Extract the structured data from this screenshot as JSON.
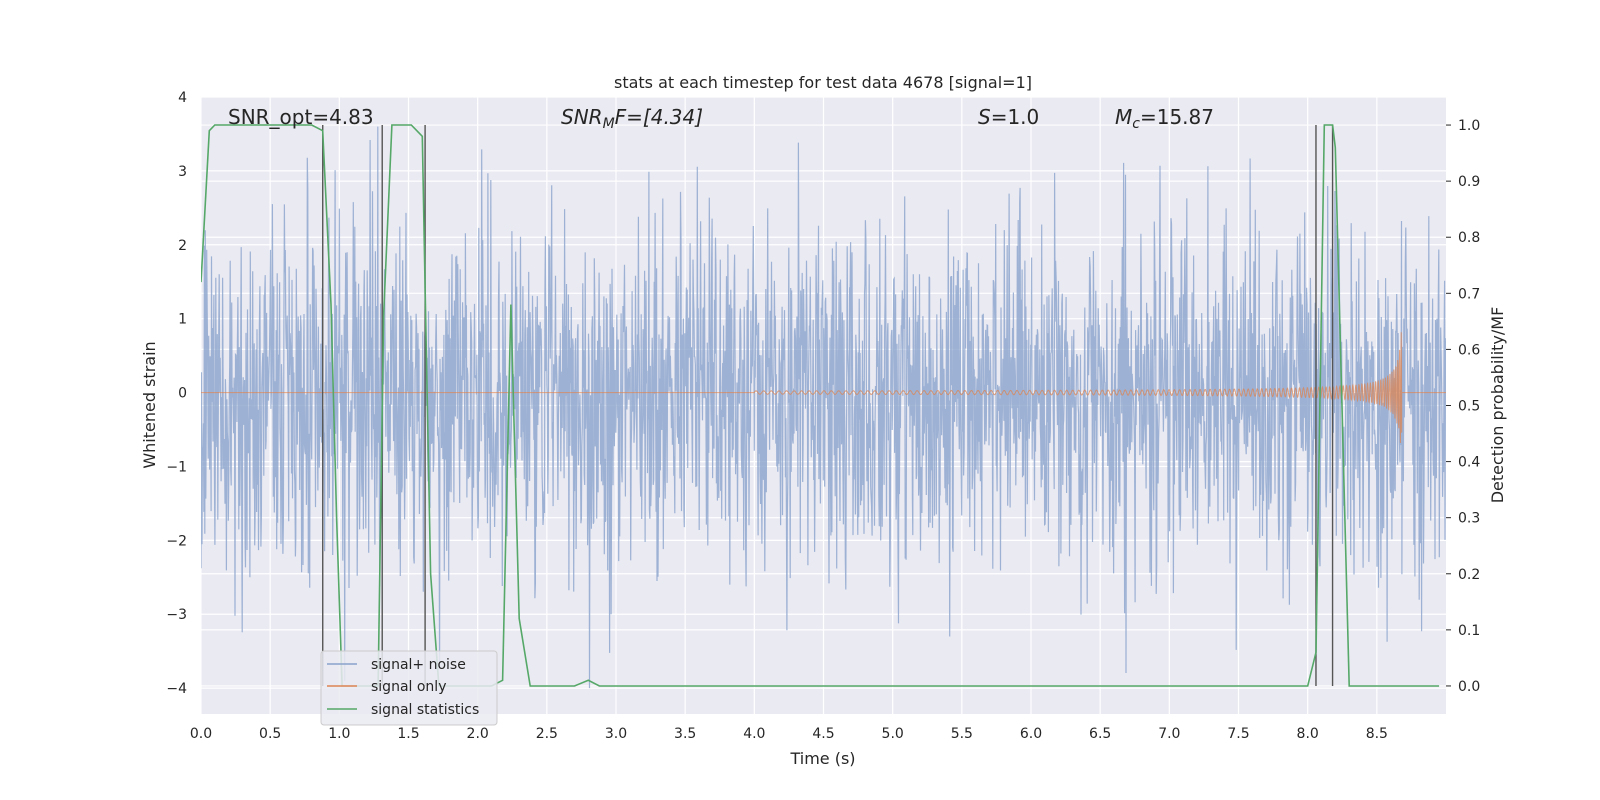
{
  "chart_data": {
    "type": "line",
    "title": "stats at each timestep for test data 4678 [signal=1]",
    "xlabel": "Time (s)",
    "ylabel": "Whitened strain",
    "y2label": "Detection probability/MF",
    "xlim": [
      0.0,
      9.0
    ],
    "ylim": [
      -4.35,
      4.0
    ],
    "y2lim": [
      -0.05,
      1.05
    ],
    "xticks": [
      0.0,
      0.5,
      1.0,
      1.5,
      2.0,
      2.5,
      3.0,
      3.5,
      4.0,
      4.5,
      5.0,
      5.5,
      6.0,
      6.5,
      7.0,
      7.5,
      8.0,
      8.5
    ],
    "xtick_labels": [
      "0.0",
      "0.5",
      "1.0",
      "1.5",
      "2.0",
      "2.5",
      "3.0",
      "3.5",
      "4.0",
      "4.5",
      "5.0",
      "5.5",
      "6.0",
      "6.5",
      "7.0",
      "7.5",
      "8.0",
      "8.5"
    ],
    "yticks": [
      -4,
      -3,
      -2,
      -1,
      0,
      1,
      2,
      3,
      4
    ],
    "ytick_labels": [
      "−4",
      "−3",
      "−2",
      "−1",
      "0",
      "1",
      "2",
      "3",
      "4"
    ],
    "y2ticks": [
      0.0,
      0.1,
      0.2,
      0.3,
      0.4,
      0.5,
      0.6,
      0.7,
      0.8,
      0.9,
      1.0
    ],
    "y2tick_labels": [
      "0.0",
      "0.1",
      "0.2",
      "0.3",
      "0.4",
      "0.5",
      "0.6",
      "0.7",
      "0.8",
      "0.9",
      "1.0"
    ],
    "grid": true,
    "legend_position": "lower-left",
    "annotations": {
      "snr_opt": "SNR_opt=4.83",
      "snr_mf_name": "SNR",
      "snr_mf_sub": "M",
      "snr_mf_rest": "F=[4.34]",
      "s_name": "S",
      "s_rest": "=1.0",
      "mc_name": "M",
      "mc_sub": "c",
      "mc_rest": "=15.87"
    },
    "series": [
      {
        "name": "signal+ noise",
        "color": "#8aa2cc",
        "description_values": "dense whitened noise, roughly within [-4, 3.6]"
      },
      {
        "name": "signal only",
        "color": "#dd8452",
        "chirp": {
          "start_time": 4.0,
          "end_time": 8.68,
          "peak_amplitude": 1.05
        }
      },
      {
        "name": "signal statistics",
        "color": "#55a868",
        "x": [
          0.0,
          0.06,
          0.1,
          0.2,
          0.4,
          0.6,
          0.8,
          0.88,
          0.94,
          0.98,
          1.02,
          1.1,
          1.2,
          1.28,
          1.32,
          1.38,
          1.44,
          1.52,
          1.6,
          1.62,
          1.66,
          1.72,
          1.8,
          1.9,
          2.0,
          2.1,
          2.18,
          2.24,
          2.3,
          2.38,
          2.5,
          2.7,
          2.8,
          2.88,
          3.0,
          3.3,
          3.4,
          4.0,
          5.0,
          6.0,
          7.0,
          7.5,
          8.0,
          8.06,
          8.12,
          8.18,
          8.2,
          8.3,
          8.6,
          8.95
        ],
        "values": [
          0.72,
          0.99,
          1.0,
          1.0,
          1.0,
          1.0,
          1.0,
          0.99,
          0.68,
          0.3,
          0.0,
          0.0,
          0.0,
          0.0,
          0.66,
          1.0,
          1.0,
          1.0,
          0.98,
          0.71,
          0.2,
          0.0,
          0.0,
          0.0,
          0.0,
          0.0,
          0.01,
          0.68,
          0.12,
          0.0,
          0.0,
          0.0,
          0.01,
          0.0,
          0.0,
          0.0,
          0.0,
          0.0,
          0.0,
          0.0,
          0.0,
          0.0,
          0.0,
          0.06,
          1.0,
          1.0,
          0.96,
          0.0,
          0.0,
          0.0
        ]
      }
    ],
    "vertical_markers": {
      "color": "#555555",
      "x": [
        0.88,
        1.31,
        1.62,
        8.06,
        8.18
      ]
    }
  }
}
